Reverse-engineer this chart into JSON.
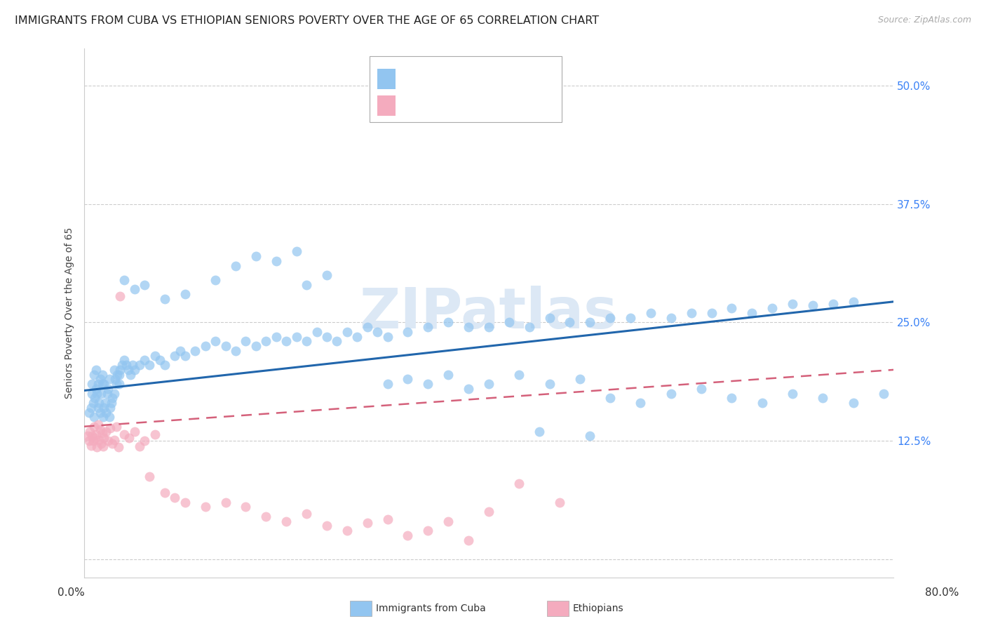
{
  "title": "IMMIGRANTS FROM CUBA VS ETHIOPIAN SENIORS POVERTY OVER THE AGE OF 65 CORRELATION CHART",
  "source": "Source: ZipAtlas.com",
  "ylabel": "Seniors Poverty Over the Age of 65",
  "ytick_values": [
    0.0,
    0.125,
    0.25,
    0.375,
    0.5
  ],
  "xlim": [
    0.0,
    0.8
  ],
  "ylim": [
    -0.02,
    0.54
  ],
  "cuba_color": "#92C5F0",
  "cuba_line_color": "#2166AC",
  "eth_color": "#F4ABBE",
  "eth_line_color": "#D4607A",
  "blue_text": "#3B82F6",
  "red_text": "#EF4444",
  "watermark": "ZIPatlas",
  "title_fontsize": 11.5,
  "label_fontsize": 10,
  "tick_fontsize": 11,
  "background_color": "#FFFFFF",
  "grid_color": "#CCCCCC",
  "cuba_line_y_start": 0.178,
  "cuba_line_y_end": 0.272,
  "eth_line_y_start": 0.14,
  "eth_line_y_end": 0.2,
  "cuba_x": [
    0.005,
    0.007,
    0.008,
    0.009,
    0.01,
    0.011,
    0.012,
    0.013,
    0.014,
    0.015,
    0.016,
    0.017,
    0.018,
    0.019,
    0.02,
    0.021,
    0.022,
    0.023,
    0.024,
    0.025,
    0.026,
    0.027,
    0.028,
    0.03,
    0.031,
    0.032,
    0.033,
    0.035,
    0.036,
    0.038,
    0.04,
    0.042,
    0.044,
    0.046,
    0.048,
    0.05,
    0.055,
    0.06,
    0.065,
    0.07,
    0.075,
    0.08,
    0.09,
    0.095,
    0.1,
    0.11,
    0.12,
    0.13,
    0.14,
    0.15,
    0.16,
    0.17,
    0.18,
    0.19,
    0.2,
    0.21,
    0.22,
    0.23,
    0.24,
    0.25,
    0.26,
    0.27,
    0.28,
    0.29,
    0.3,
    0.32,
    0.34,
    0.36,
    0.38,
    0.4,
    0.42,
    0.44,
    0.46,
    0.48,
    0.5,
    0.52,
    0.54,
    0.56,
    0.58,
    0.6,
    0.62,
    0.64,
    0.66,
    0.68,
    0.7,
    0.72,
    0.74,
    0.76,
    0.22,
    0.24,
    0.13,
    0.15,
    0.17,
    0.19,
    0.21,
    0.1,
    0.08,
    0.06,
    0.05,
    0.04,
    0.035,
    0.03,
    0.025,
    0.02,
    0.018,
    0.016,
    0.014,
    0.012,
    0.01,
    0.008,
    0.3,
    0.32,
    0.34,
    0.36,
    0.38,
    0.4,
    0.43,
    0.46,
    0.49,
    0.52,
    0.55,
    0.58,
    0.61,
    0.64,
    0.67,
    0.7,
    0.73,
    0.76,
    0.79,
    0.45,
    0.5
  ],
  "cuba_y": [
    0.155,
    0.16,
    0.175,
    0.165,
    0.15,
    0.17,
    0.18,
    0.175,
    0.16,
    0.165,
    0.155,
    0.175,
    0.185,
    0.15,
    0.16,
    0.165,
    0.155,
    0.175,
    0.18,
    0.15,
    0.16,
    0.165,
    0.17,
    0.175,
    0.19,
    0.185,
    0.195,
    0.185,
    0.2,
    0.205,
    0.21,
    0.205,
    0.2,
    0.195,
    0.205,
    0.2,
    0.205,
    0.21,
    0.205,
    0.215,
    0.21,
    0.205,
    0.215,
    0.22,
    0.215,
    0.22,
    0.225,
    0.23,
    0.225,
    0.22,
    0.23,
    0.225,
    0.23,
    0.235,
    0.23,
    0.235,
    0.23,
    0.24,
    0.235,
    0.23,
    0.24,
    0.235,
    0.245,
    0.24,
    0.235,
    0.24,
    0.245,
    0.25,
    0.245,
    0.245,
    0.25,
    0.245,
    0.255,
    0.25,
    0.25,
    0.255,
    0.255,
    0.26,
    0.255,
    0.26,
    0.26,
    0.265,
    0.26,
    0.265,
    0.27,
    0.268,
    0.27,
    0.272,
    0.29,
    0.3,
    0.295,
    0.31,
    0.32,
    0.315,
    0.325,
    0.28,
    0.275,
    0.29,
    0.285,
    0.295,
    0.195,
    0.2,
    0.19,
    0.185,
    0.195,
    0.19,
    0.185,
    0.2,
    0.195,
    0.185,
    0.185,
    0.19,
    0.185,
    0.195,
    0.18,
    0.185,
    0.195,
    0.185,
    0.19,
    0.17,
    0.165,
    0.175,
    0.18,
    0.17,
    0.165,
    0.175,
    0.17,
    0.165,
    0.175,
    0.135,
    0.13
  ],
  "eth_x": [
    0.004,
    0.005,
    0.006,
    0.007,
    0.008,
    0.009,
    0.01,
    0.011,
    0.012,
    0.013,
    0.014,
    0.015,
    0.016,
    0.017,
    0.018,
    0.019,
    0.02,
    0.022,
    0.024,
    0.026,
    0.028,
    0.03,
    0.032,
    0.034,
    0.036,
    0.04,
    0.045,
    0.05,
    0.055,
    0.06,
    0.065,
    0.07,
    0.08,
    0.09,
    0.1,
    0.12,
    0.14,
    0.16,
    0.18,
    0.2,
    0.22,
    0.24,
    0.26,
    0.28,
    0.3,
    0.32,
    0.34,
    0.36,
    0.38,
    0.4,
    0.43,
    0.47
  ],
  "eth_y": [
    0.13,
    0.125,
    0.135,
    0.12,
    0.13,
    0.125,
    0.14,
    0.128,
    0.132,
    0.118,
    0.142,
    0.126,
    0.137,
    0.122,
    0.133,
    0.119,
    0.128,
    0.135,
    0.125,
    0.138,
    0.122,
    0.126,
    0.14,
    0.118,
    0.278,
    0.132,
    0.128,
    0.135,
    0.119,
    0.125,
    0.087,
    0.132,
    0.07,
    0.065,
    0.06,
    0.055,
    0.06,
    0.055,
    0.045,
    0.04,
    0.048,
    0.035,
    0.03,
    0.038,
    0.042,
    0.025,
    0.03,
    0.04,
    0.02,
    0.05,
    0.08,
    0.06
  ]
}
